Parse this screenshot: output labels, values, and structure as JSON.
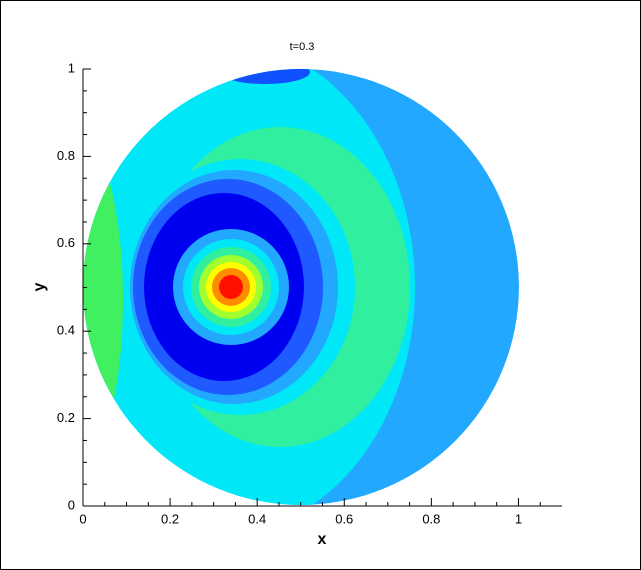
{
  "chart_data": {
    "type": "contour",
    "title": "t=0.3",
    "xlabel": "x",
    "ylabel": "y",
    "xlim": [
      0,
      1.1
    ],
    "ylim": [
      0,
      1
    ],
    "xticks": [
      0,
      0.2,
      0.4,
      0.6,
      0.8,
      1
    ],
    "yticks": [
      0,
      0.2,
      0.4,
      0.6,
      0.8,
      1
    ],
    "xminorticks": [
      0.05,
      0.1,
      0.15,
      0.25,
      0.3,
      0.35,
      0.45,
      0.5,
      0.55,
      0.65,
      0.7,
      0.75,
      0.85,
      0.9,
      0.95,
      1.05
    ],
    "yminorticks": [
      0.05,
      0.1,
      0.15,
      0.25,
      0.3,
      0.35,
      0.45,
      0.5,
      0.55,
      0.65,
      0.7,
      0.75,
      0.85,
      0.9,
      0.95
    ]
  }
}
